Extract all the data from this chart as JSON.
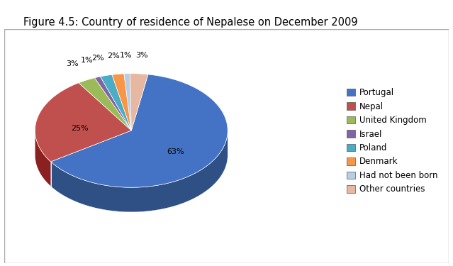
{
  "title": "Figure 4.5: Country of residence of Nepalese on December 2009",
  "labels": [
    "Portugal",
    "Nepal",
    "United Kingdom",
    "Israel",
    "Poland",
    "Denmark",
    "Had not been born",
    "Other countries"
  ],
  "values": [
    63,
    25,
    3,
    1,
    2,
    2,
    1,
    3
  ],
  "colors": [
    "#4472C4",
    "#C0504D",
    "#9BBB59",
    "#8064A2",
    "#4BACC6",
    "#F79646",
    "#B8CCE4",
    "#E6B8A2"
  ],
  "dark_colors": [
    "#2E5085",
    "#8B2020",
    "#6B8A3E",
    "#5A4580",
    "#2E7A8A",
    "#B55A1A",
    "#8899BB",
    "#B08070"
  ],
  "pct_labels": [
    "63%",
    "25%",
    "3%",
    "1%",
    "2%",
    "2%",
    "1%",
    "3%"
  ],
  "background_color": "#FFFFFF",
  "title_fontsize": 10.5,
  "legend_fontsize": 8.5,
  "startangle": 80,
  "counterclock": false
}
